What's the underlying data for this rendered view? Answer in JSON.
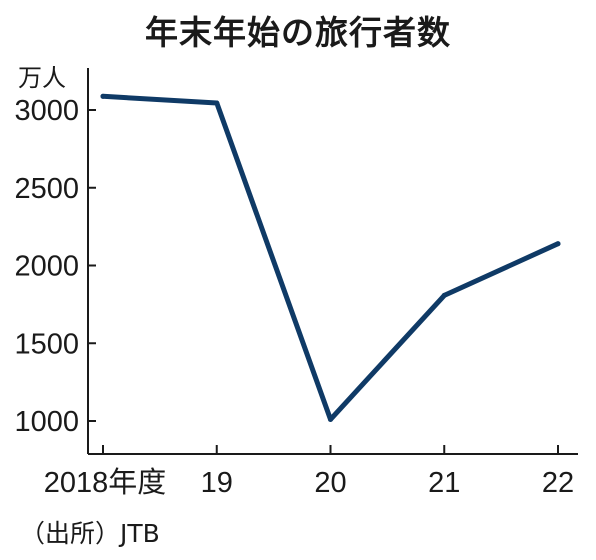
{
  "chart_data": {
    "type": "line",
    "title": "年末年始の旅行者数",
    "ylabel": "万人",
    "source": "（出所）JTB",
    "categories": [
      "2018年度",
      "19",
      "20",
      "21",
      "22"
    ],
    "series": [
      {
        "values": [
          3088,
          3045,
          1010,
          1808,
          2140
        ]
      }
    ],
    "yticks": [
      1000,
      1500,
      2000,
      2500,
      3000
    ],
    "ylim": [
      800,
      3250
    ],
    "grid": false,
    "line_color": "#0f3a66"
  }
}
